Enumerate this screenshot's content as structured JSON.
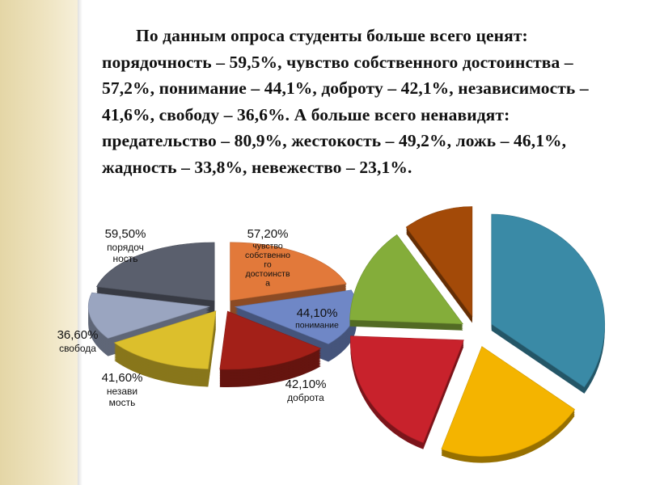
{
  "text": "По данным опроса студенты больше всего ценят: порядочность – 59,5%, чувство собственного достоинства – 57,2%, понимание – 44,1%, доброту – 42,1%, независимость – 41,6%, свободу – 36,6%. А больше всего ненавидят: предательство – 80,9%, жестокость – 49,2%, ложь – 46,1%, жадность – 33,8%, невежество – 23,1%.",
  "chart_data": [
    {
      "type": "pie",
      "style": "exploded 3d",
      "slices": [
        {
          "pct": "57,20%",
          "name": "чувство собственного достоинства",
          "name_lines": [
            "чувство",
            "собственно",
            "го",
            "достоинств",
            "а"
          ],
          "value": 57.2,
          "color": "#e2793a"
        },
        {
          "pct": "44,10%",
          "name": "понимание",
          "name_lines": [
            "понимание"
          ],
          "value": 44.1,
          "color": "#6f87c6"
        },
        {
          "pct": "42,10%",
          "name": "доброта",
          "name_lines": [
            "доброта"
          ],
          "value": 42.1,
          "color": "#a32018"
        },
        {
          "pct": "41,60%",
          "name": "независимость",
          "name_lines": [
            "незави",
            "мость"
          ],
          "value": 41.6,
          "color": "#dcbf2c"
        },
        {
          "pct": "36,60%",
          "name": "свобода",
          "name_lines": [
            "свобода"
          ],
          "value": 36.6,
          "color": "#9aa5c0"
        },
        {
          "pct": "59,50%",
          "name": "порядочность",
          "name_lines": [
            "порядоч",
            "ность"
          ],
          "value": 59.5,
          "color": "#5a5f6d"
        }
      ]
    },
    {
      "type": "pie",
      "style": "exploded 3d",
      "slices": [
        {
          "value": 80.9,
          "color": "#3a8aa6"
        },
        {
          "value": 49.2,
          "color": "#f4b400"
        },
        {
          "value": 46.1,
          "color": "#c8222c"
        },
        {
          "value": 33.8,
          "color": "#84ad3a"
        },
        {
          "value": 23.1,
          "color": "#a34a08"
        }
      ]
    }
  ]
}
